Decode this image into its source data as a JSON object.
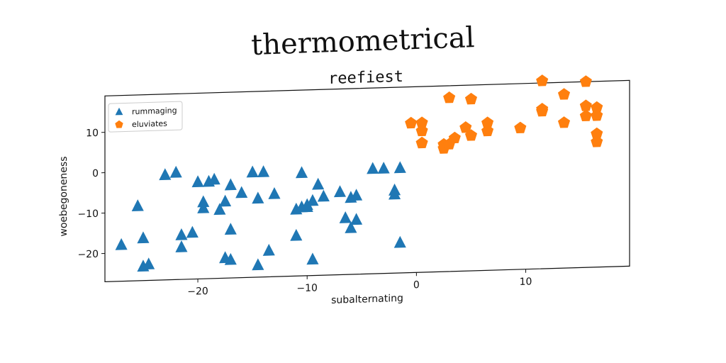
{
  "supertitle": "thermometrical",
  "chart_data": {
    "type": "scatter",
    "title": "reefiest",
    "xlabel": "subalternating",
    "ylabel": "woebegoneness",
    "xlim": [
      -28.5,
      19.5
    ],
    "ylim": [
      -27,
      19
    ],
    "xticks": [
      -20,
      -10,
      0,
      10
    ],
    "yticks": [
      -20,
      -10,
      0,
      10
    ],
    "xtick_labels": [
      "−20",
      "−10",
      "0",
      "10"
    ],
    "ytick_labels": [
      "−20",
      "−10",
      "0",
      "10"
    ],
    "grid": false,
    "legend_position": "top-left",
    "series": [
      {
        "name": "rummaging",
        "marker": "triangle",
        "color": "#1f77b4",
        "points": [
          [
            -27,
            -18
          ],
          [
            -25.5,
            -8.5
          ],
          [
            -25,
            -16.5
          ],
          [
            -25,
            -23.5
          ],
          [
            -24.5,
            -23
          ],
          [
            -23,
            -1
          ],
          [
            -22,
            -0.5
          ],
          [
            -21.5,
            -19
          ],
          [
            -21.5,
            -16
          ],
          [
            -20.5,
            -15.5
          ],
          [
            -20,
            -3
          ],
          [
            -19.5,
            -8
          ],
          [
            -19.5,
            -9.5
          ],
          [
            -19,
            -3
          ],
          [
            -18.5,
            -2.5
          ],
          [
            -18,
            -10
          ],
          [
            -17.5,
            -22
          ],
          [
            -17.5,
            -8
          ],
          [
            -17,
            -15
          ],
          [
            -17,
            -22.5
          ],
          [
            -17,
            -4
          ],
          [
            -16,
            -6
          ],
          [
            -15,
            -1
          ],
          [
            -14.5,
            -24
          ],
          [
            -14.5,
            -7.5
          ],
          [
            -14,
            -1
          ],
          [
            -13.5,
            -20.5
          ],
          [
            -13,
            -6.5
          ],
          [
            -11,
            -17
          ],
          [
            -11,
            -10.5
          ],
          [
            -10.5,
            -1.5
          ],
          [
            -10.5,
            -10
          ],
          [
            -10,
            -9.5
          ],
          [
            -10,
            -10
          ],
          [
            -9.5,
            -23
          ],
          [
            -9.5,
            -8.5
          ],
          [
            -9,
            -4.5
          ],
          [
            -8.5,
            -7.5
          ],
          [
            -7,
            -6.5
          ],
          [
            -6.5,
            -13
          ],
          [
            -6,
            -15.5
          ],
          [
            -6,
            -8
          ],
          [
            -5.5,
            -13.5
          ],
          [
            -5.5,
            -7.5
          ],
          [
            -4,
            -1
          ],
          [
            -3,
            -1
          ],
          [
            -2,
            -6.5
          ],
          [
            -2,
            -7.5
          ],
          [
            -1.5,
            -1
          ],
          [
            -1.5,
            -19.5
          ]
        ]
      },
      {
        "name": "eluviates",
        "marker": "pentagon",
        "color": "#ff7f0e",
        "points": [
          [
            -0.5,
            10
          ],
          [
            0.5,
            10
          ],
          [
            0.5,
            8
          ],
          [
            0.5,
            5
          ],
          [
            2.5,
            3.5
          ],
          [
            2.5,
            4.5
          ],
          [
            3,
            16
          ],
          [
            3,
            4.5
          ],
          [
            3.5,
            6
          ],
          [
            4.5,
            8.5
          ],
          [
            5,
            15.5
          ],
          [
            5,
            6.5
          ],
          [
            6.5,
            7.5
          ],
          [
            6.5,
            9.5
          ],
          [
            9.5,
            8
          ],
          [
            11.5,
            19.5
          ],
          [
            11.5,
            12
          ],
          [
            11.5,
            12.5
          ],
          [
            13.5,
            16
          ],
          [
            13.5,
            9
          ],
          [
            15.5,
            19
          ],
          [
            15.5,
            13
          ],
          [
            15.5,
            10.5
          ],
          [
            16.5,
            12.5
          ],
          [
            16.5,
            10.5
          ],
          [
            16.5,
            6
          ],
          [
            16.5,
            4
          ]
        ]
      }
    ]
  }
}
